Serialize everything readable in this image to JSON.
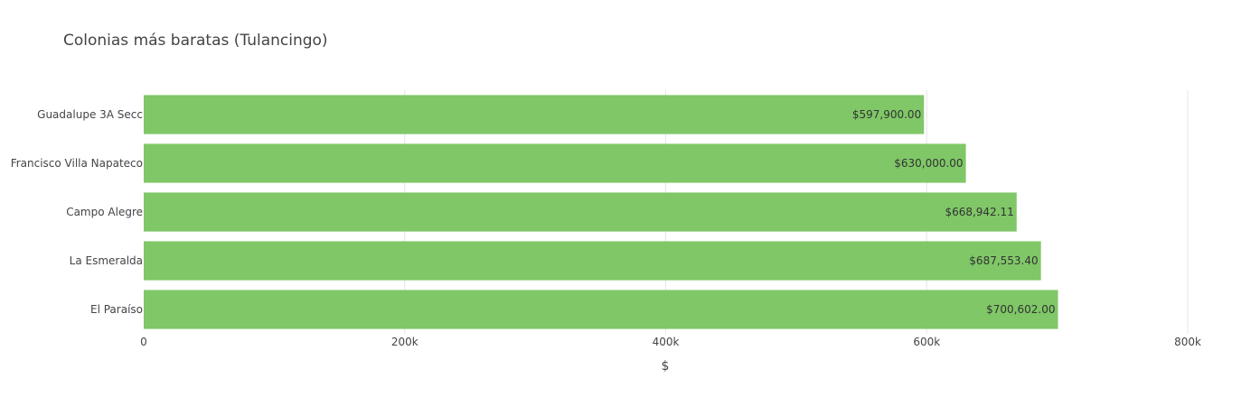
{
  "chart_data": {
    "type": "bar",
    "orientation": "horizontal",
    "title": "Colonias más baratas (Tulancingo)",
    "xlabel": "$",
    "ylabel": "",
    "categories": [
      "Guadalupe 3A Secc",
      "Francisco Villa Napateco",
      "Campo Alegre",
      "La Esmeralda",
      "El Paraíso"
    ],
    "values": [
      597900.0,
      630000.0,
      668942.11,
      687553.4,
      700602.0
    ],
    "value_labels": [
      "$597,900.00",
      "$630,000.00",
      "$668,942.11",
      "$687,553.40",
      "$700,602.00"
    ],
    "xlim": [
      0,
      800000
    ],
    "xticks": [
      0,
      200000,
      400000,
      600000,
      800000
    ],
    "xtick_labels": [
      "0",
      "200k",
      "400k",
      "600k",
      "800k"
    ],
    "grid": true,
    "bar_color": "#7fc767"
  }
}
